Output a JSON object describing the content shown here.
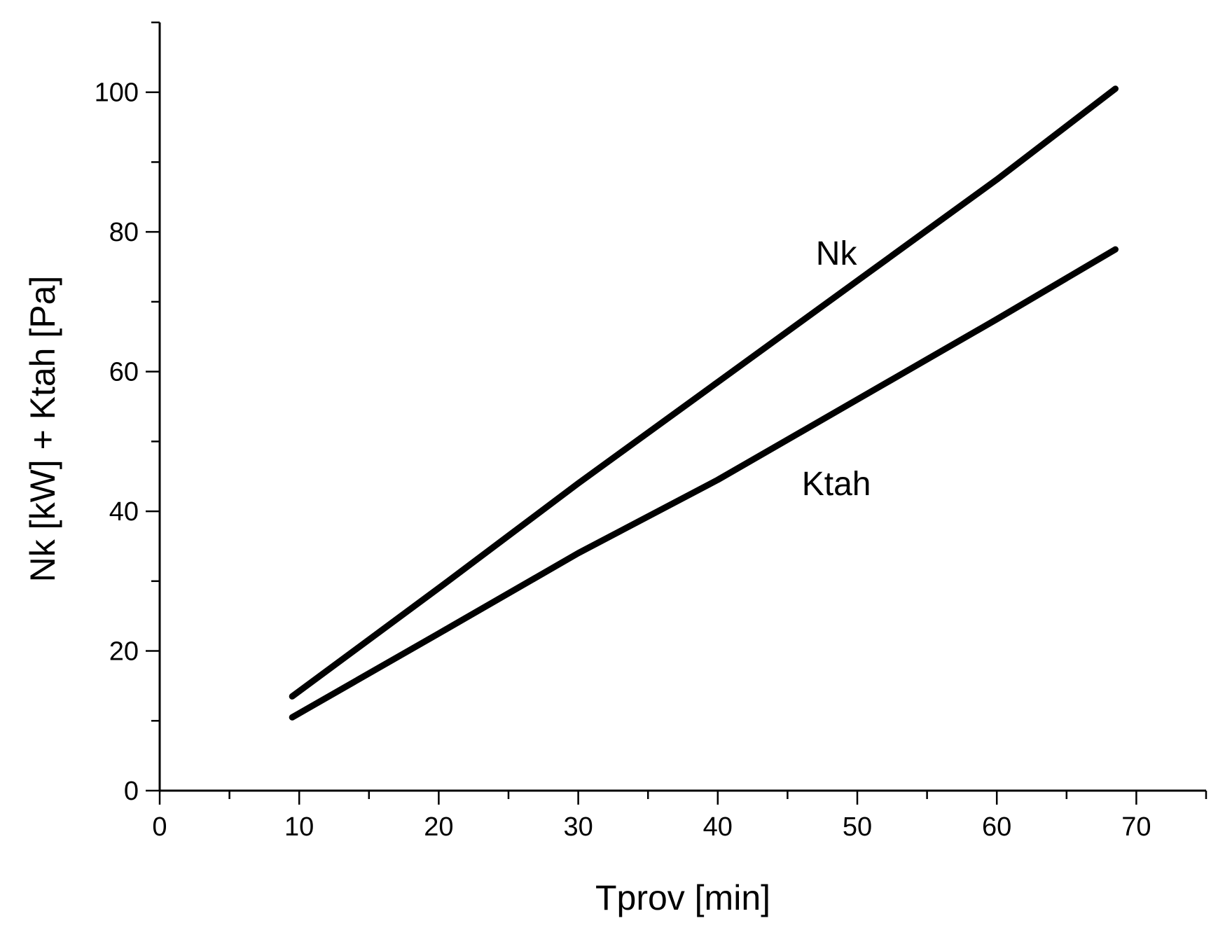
{
  "chart_data": {
    "type": "line",
    "title": "",
    "xlabel": "Tprov [min]",
    "ylabel": "Nk [kW] + Ktah [Pa]",
    "xlim": [
      0,
      75
    ],
    "ylim": [
      0,
      110
    ],
    "x_ticks": [
      0,
      10,
      20,
      30,
      40,
      50,
      60,
      70
    ],
    "y_ticks": [
      0,
      20,
      40,
      60,
      80,
      100
    ],
    "x_minor_step": 5,
    "y_minor_step": 10,
    "grid": false,
    "legend": "none",
    "line_color": "#000000",
    "series": [
      {
        "name": "Nk",
        "x": [
          9.5,
          20,
          30,
          40,
          50,
          60,
          68.5
        ],
        "y": [
          13.5,
          29,
          44,
          58.5,
          73,
          87.5,
          100.5
        ]
      },
      {
        "name": "Ktah",
        "x": [
          9.5,
          20,
          30,
          40,
          50,
          60,
          68.5
        ],
        "y": [
          10.5,
          22.5,
          34,
          44.5,
          56,
          67.5,
          77.5
        ]
      }
    ],
    "annotations": [
      {
        "text": "Nk",
        "series": "Nk",
        "x": 48.5,
        "y": 77
      },
      {
        "text": "Ktah",
        "series": "Ktah",
        "x": 48.5,
        "y": 44
      }
    ]
  }
}
